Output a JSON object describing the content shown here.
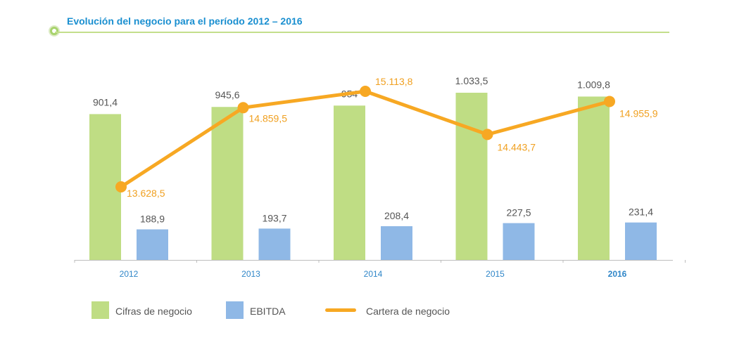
{
  "header": {
    "title": "Evolución del negocio para el período 2012 – 2016"
  },
  "colors": {
    "title": "#1a8fd0",
    "rule": "#c3df8b",
    "cifras": "#bfdd84",
    "ebitda": "#8fb8e6",
    "cartera": "#f7a823",
    "axis_label": "#2f86c8",
    "value_label": "#555555",
    "cartera_label": "#f0a020"
  },
  "legend": {
    "cifras": "Cifras de negocio",
    "ebitda": "EBITDA",
    "cartera": "Cartera de negocio"
  },
  "chart_data": {
    "type": "bar",
    "title": "Evolución del negocio para el período 2012 – 2016",
    "categories": [
      "2012",
      "2013",
      "2014",
      "2015",
      "2016"
    ],
    "emphasized_category": "2016",
    "series": [
      {
        "name": "Cifras de negocio",
        "type": "bar",
        "values": [
          901.4,
          945.6,
          954,
          1033.5,
          1009.8
        ],
        "labels": [
          "901,4",
          "945,6",
          "954",
          "1.033,5",
          "1.009,8"
        ]
      },
      {
        "name": "EBITDA",
        "type": "bar",
        "values": [
          188.9,
          193.7,
          208.4,
          227.5,
          231.4
        ],
        "labels": [
          "188,9",
          "193,7",
          "208,4",
          "227,5",
          "231,4"
        ]
      },
      {
        "name": "Cartera de negocio",
        "type": "line",
        "values": [
          13628.5,
          14859.5,
          15113.8,
          14443.7,
          14955.9
        ],
        "labels": [
          "13.628,5",
          "14.859,5",
          "15.113,8",
          "14.443,7",
          "14.955,9"
        ]
      }
    ],
    "legend_position": "bottom",
    "grid": false
  }
}
